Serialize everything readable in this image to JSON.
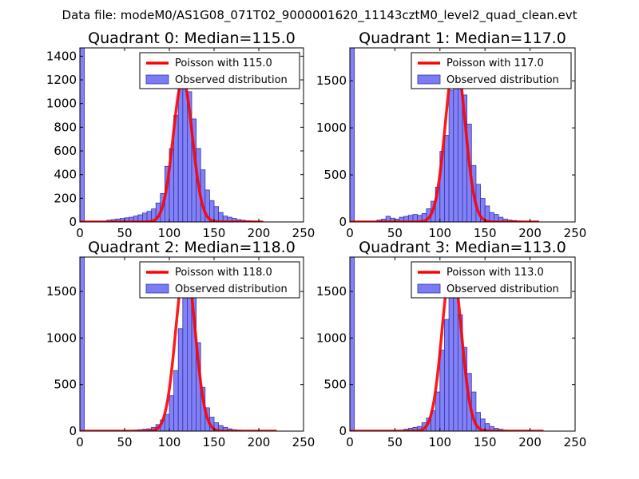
{
  "figure_title": "Data file: modeM0/AS1G08_071T02_9000001620_11143cztM0_level2_quad_clean.evt",
  "colors": {
    "bar_fill": "#7b7bf5",
    "bar_edge": "#3434a8",
    "poisson_line": "#ff0000",
    "background": "#ffffff",
    "axes": "#000000"
  },
  "chart_data": [
    {
      "type": "bar",
      "title": "Quadrant 0: Median=115.0",
      "xlim": [
        0,
        250
      ],
      "ylim": [
        0,
        1470
      ],
      "xticks": [
        0,
        50,
        100,
        150,
        200,
        250
      ],
      "yticks": [
        0,
        200,
        400,
        600,
        800,
        1000,
        1200,
        1400
      ],
      "bin_width": 5,
      "legend": {
        "position": "top-right",
        "line_label": "Poisson with 115.0",
        "bar_label": "Observed distribution"
      },
      "poisson_mean": 115.0,
      "poisson_peak": 1200,
      "poisson_range": [
        0,
        205
      ],
      "bins": [
        {
          "x": 0,
          "count": 1470
        },
        {
          "x": 30,
          "count": 15
        },
        {
          "x": 35,
          "count": 20
        },
        {
          "x": 40,
          "count": 25
        },
        {
          "x": 45,
          "count": 30
        },
        {
          "x": 50,
          "count": 35
        },
        {
          "x": 55,
          "count": 40
        },
        {
          "x": 60,
          "count": 50
        },
        {
          "x": 65,
          "count": 60
        },
        {
          "x": 70,
          "count": 75
        },
        {
          "x": 75,
          "count": 90
        },
        {
          "x": 80,
          "count": 110
        },
        {
          "x": 85,
          "count": 160
        },
        {
          "x": 90,
          "count": 240
        },
        {
          "x": 95,
          "count": 470
        },
        {
          "x": 100,
          "count": 620
        },
        {
          "x": 105,
          "count": 900
        },
        {
          "x": 110,
          "count": 1130
        },
        {
          "x": 115,
          "count": 1190
        },
        {
          "x": 120,
          "count": 1100
        },
        {
          "x": 125,
          "count": 870
        },
        {
          "x": 130,
          "count": 620
        },
        {
          "x": 135,
          "count": 440
        },
        {
          "x": 140,
          "count": 270
        },
        {
          "x": 145,
          "count": 180
        },
        {
          "x": 150,
          "count": 130
        },
        {
          "x": 155,
          "count": 80
        },
        {
          "x": 160,
          "count": 50
        },
        {
          "x": 165,
          "count": 40
        },
        {
          "x": 170,
          "count": 30
        },
        {
          "x": 175,
          "count": 20
        },
        {
          "x": 180,
          "count": 15
        },
        {
          "x": 185,
          "count": 10
        },
        {
          "x": 190,
          "count": 8
        },
        {
          "x": 195,
          "count": 5
        }
      ]
    },
    {
      "type": "bar",
      "title": "Quadrant 1: Median=117.0",
      "xlim": [
        0,
        250
      ],
      "ylim": [
        0,
        1850
      ],
      "xticks": [
        0,
        50,
        100,
        150,
        200,
        250
      ],
      "yticks": [
        0,
        500,
        1000,
        1500
      ],
      "bin_width": 5,
      "legend": {
        "position": "top-right",
        "line_label": "Poisson with 117.0",
        "bar_label": "Observed distribution"
      },
      "poisson_mean": 117.0,
      "poisson_peak": 1760,
      "poisson_range": [
        0,
        210
      ],
      "bins": [
        {
          "x": 0,
          "count": 1850
        },
        {
          "x": 30,
          "count": 20
        },
        {
          "x": 35,
          "count": 30
        },
        {
          "x": 40,
          "count": 60
        },
        {
          "x": 45,
          "count": 40
        },
        {
          "x": 50,
          "count": 30
        },
        {
          "x": 55,
          "count": 50
        },
        {
          "x": 60,
          "count": 60
        },
        {
          "x": 65,
          "count": 70
        },
        {
          "x": 70,
          "count": 80
        },
        {
          "x": 75,
          "count": 70
        },
        {
          "x": 80,
          "count": 90
        },
        {
          "x": 85,
          "count": 140
        },
        {
          "x": 90,
          "count": 220
        },
        {
          "x": 95,
          "count": 370
        },
        {
          "x": 100,
          "count": 750
        },
        {
          "x": 105,
          "count": 920
        },
        {
          "x": 110,
          "count": 1400
        },
        {
          "x": 115,
          "count": 1650
        },
        {
          "x": 120,
          "count": 1720
        },
        {
          "x": 125,
          "count": 1350
        },
        {
          "x": 130,
          "count": 1040
        },
        {
          "x": 135,
          "count": 600
        },
        {
          "x": 140,
          "count": 400
        },
        {
          "x": 145,
          "count": 250
        },
        {
          "x": 150,
          "count": 170
        },
        {
          "x": 155,
          "count": 100
        },
        {
          "x": 160,
          "count": 80
        },
        {
          "x": 165,
          "count": 50
        },
        {
          "x": 170,
          "count": 30
        },
        {
          "x": 175,
          "count": 20
        },
        {
          "x": 180,
          "count": 15
        },
        {
          "x": 185,
          "count": 10
        }
      ]
    },
    {
      "type": "bar",
      "title": "Quadrant 2: Median=118.0",
      "xlim": [
        0,
        250
      ],
      "ylim": [
        0,
        1870
      ],
      "xticks": [
        0,
        50,
        100,
        150,
        200,
        250
      ],
      "yticks": [
        0,
        500,
        1000,
        1500
      ],
      "bin_width": 5,
      "legend": {
        "position": "top-right",
        "line_label": "Poisson with 118.0",
        "bar_label": "Observed distribution"
      },
      "poisson_mean": 118.0,
      "poisson_peak": 1790,
      "poisson_range": [
        0,
        220
      ],
      "bins": [
        {
          "x": 0,
          "count": 1870
        },
        {
          "x": 60,
          "count": 10
        },
        {
          "x": 65,
          "count": 15
        },
        {
          "x": 70,
          "count": 20
        },
        {
          "x": 75,
          "count": 25
        },
        {
          "x": 80,
          "count": 40
        },
        {
          "x": 85,
          "count": 70
        },
        {
          "x": 90,
          "count": 120
        },
        {
          "x": 95,
          "count": 180
        },
        {
          "x": 100,
          "count": 380
        },
        {
          "x": 105,
          "count": 650
        },
        {
          "x": 110,
          "count": 1100
        },
        {
          "x": 115,
          "count": 1700
        },
        {
          "x": 120,
          "count": 1750
        },
        {
          "x": 125,
          "count": 1550
        },
        {
          "x": 130,
          "count": 950
        },
        {
          "x": 135,
          "count": 470
        },
        {
          "x": 140,
          "count": 250
        },
        {
          "x": 145,
          "count": 150
        },
        {
          "x": 150,
          "count": 90
        },
        {
          "x": 155,
          "count": 60
        },
        {
          "x": 160,
          "count": 40
        },
        {
          "x": 165,
          "count": 25
        },
        {
          "x": 170,
          "count": 15
        },
        {
          "x": 175,
          "count": 10
        }
      ]
    },
    {
      "type": "bar",
      "title": "Quadrant 3: Median=113.0",
      "xlim": [
        0,
        250
      ],
      "ylim": [
        0,
        1870
      ],
      "xticks": [
        0,
        50,
        100,
        150,
        200,
        250
      ],
      "yticks": [
        0,
        500,
        1000,
        1500
      ],
      "bin_width": 5,
      "legend": {
        "position": "top-right",
        "line_label": "Poisson with 113.0",
        "bar_label": "Observed distribution"
      },
      "poisson_mean": 113.0,
      "poisson_peak": 1800,
      "poisson_range": [
        0,
        215
      ],
      "bins": [
        {
          "x": 0,
          "count": 1870
        },
        {
          "x": 55,
          "count": 10
        },
        {
          "x": 60,
          "count": 20
        },
        {
          "x": 65,
          "count": 30
        },
        {
          "x": 70,
          "count": 40
        },
        {
          "x": 75,
          "count": 50
        },
        {
          "x": 80,
          "count": 90
        },
        {
          "x": 85,
          "count": 140
        },
        {
          "x": 90,
          "count": 220
        },
        {
          "x": 95,
          "count": 420
        },
        {
          "x": 100,
          "count": 870
        },
        {
          "x": 105,
          "count": 1200
        },
        {
          "x": 110,
          "count": 1750
        },
        {
          "x": 115,
          "count": 1750
        },
        {
          "x": 120,
          "count": 1250
        },
        {
          "x": 125,
          "count": 900
        },
        {
          "x": 130,
          "count": 620
        },
        {
          "x": 135,
          "count": 420
        },
        {
          "x": 140,
          "count": 200
        },
        {
          "x": 145,
          "count": 130
        },
        {
          "x": 150,
          "count": 80
        },
        {
          "x": 155,
          "count": 50
        },
        {
          "x": 160,
          "count": 30
        },
        {
          "x": 165,
          "count": 20
        },
        {
          "x": 170,
          "count": 10
        }
      ]
    }
  ]
}
